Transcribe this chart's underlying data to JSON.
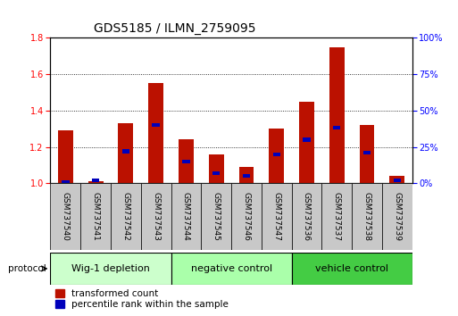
{
  "title": "GDS5185 / ILMN_2759095",
  "samples": [
    "GSM737540",
    "GSM737541",
    "GSM737542",
    "GSM737543",
    "GSM737544",
    "GSM737545",
    "GSM737546",
    "GSM737547",
    "GSM737536",
    "GSM737537",
    "GSM737538",
    "GSM737539"
  ],
  "transformed_count": [
    1.29,
    1.01,
    1.33,
    1.55,
    1.24,
    1.16,
    1.09,
    1.3,
    1.45,
    1.75,
    1.32,
    1.04
  ],
  "percentile_rank": [
    1.0,
    2.0,
    22.0,
    40.0,
    15.0,
    7.0,
    5.0,
    20.0,
    30.0,
    38.0,
    21.0,
    2.0
  ],
  "groups": [
    {
      "label": "Wig-1 depletion",
      "indices": [
        0,
        1,
        2,
        3
      ],
      "color": "#ccffcc"
    },
    {
      "label": "negative control",
      "indices": [
        4,
        5,
        6,
        7
      ],
      "color": "#aaffaa"
    },
    {
      "label": "vehicle control",
      "indices": [
        8,
        9,
        10,
        11
      ],
      "color": "#44cc44"
    }
  ],
  "ylim_left": [
    1.0,
    1.8
  ],
  "ylim_right": [
    0,
    100
  ],
  "yticks_left": [
    1.0,
    1.2,
    1.4,
    1.6,
    1.8
  ],
  "yticks_right": [
    0,
    25,
    50,
    75,
    100
  ],
  "bar_color_red": "#bb1100",
  "bar_color_blue": "#0000bb",
  "bar_width": 0.5,
  "blue_bar_width": 0.25,
  "label_fontsize": 7.5,
  "title_fontsize": 10,
  "tick_label_fontsize": 7,
  "sample_fontsize": 6.5,
  "group_fontsize": 8
}
